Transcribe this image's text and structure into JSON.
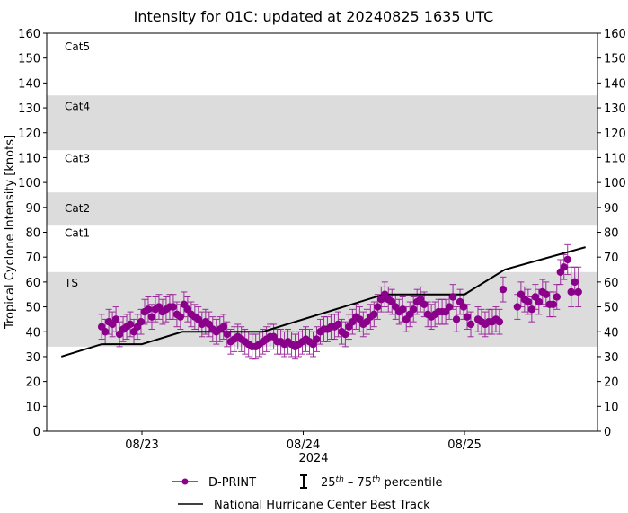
{
  "chart_data": {
    "type": "scatter",
    "title": "Intensity for 01C: updated at 20240825 1635 UTC",
    "ylabel": "Tropical Cyclone Intensity [knots]",
    "xlabel": "2024",
    "ylim": [
      0,
      160
    ],
    "yticks": [
      0,
      10,
      20,
      30,
      40,
      50,
      60,
      70,
      80,
      90,
      100,
      110,
      120,
      130,
      140,
      150,
      160
    ],
    "xticks": [
      "08/23",
      "08/24",
      "08/25"
    ],
    "grid": false,
    "category_bands": [
      {
        "label": "TS",
        "from": 34,
        "to": 64,
        "shaded": true,
        "label_at": 60
      },
      {
        "label": "Cat1",
        "from": 64,
        "to": 83,
        "shaded": false,
        "label_at": 80
      },
      {
        "label": "Cat2",
        "from": 83,
        "to": 96,
        "shaded": true,
        "label_at": 90
      },
      {
        "label": "Cat3",
        "from": 96,
        "to": 113,
        "shaded": false,
        "label_at": 110
      },
      {
        "label": "Cat4",
        "from": 113,
        "to": 135,
        "shaded": true,
        "label_at": 131
      },
      {
        "label": "Cat5",
        "from": 135,
        "to": 160,
        "shaded": false,
        "label_at": 155
      }
    ],
    "colors": {
      "dprint": "#8b008b",
      "best_track": "#000000",
      "band": "#dcdcdc"
    },
    "legend": {
      "placement": "bottom",
      "dprint": "D-PRINT",
      "percentile_pre": "25",
      "percentile_sup1": "th",
      "percentile_mid": " – 75",
      "percentile_sup2": "th",
      "percentile_post": " percentile",
      "best_track": "National Hurricane Center Best Track"
    },
    "best_track": {
      "times": [
        "08/22 12:00",
        "08/22 18:00",
        "08/23 00:00",
        "08/23 06:00",
        "08/23 18:00",
        "08/24 12:00",
        "08/25 00:00",
        "08/25 06:00",
        "08/25 18:00"
      ],
      "values": [
        30,
        35,
        35,
        40,
        40,
        55,
        55,
        65,
        74
      ]
    },
    "dprint": {
      "times": [
        "08/22 18:00",
        "08/22 18:32",
        "08/22 19:04",
        "08/22 19:36",
        "08/22 20:08",
        "08/22 20:40",
        "08/22 21:12",
        "08/22 21:44",
        "08/22 22:16",
        "08/22 22:48",
        "08/22 23:20",
        "08/22 23:52",
        "08/23 00:24",
        "08/23 00:56",
        "08/23 01:28",
        "08/23 02:00",
        "08/23 02:32",
        "08/23 03:04",
        "08/23 03:36",
        "08/23 04:08",
        "08/23 04:40",
        "08/23 05:12",
        "08/23 05:44",
        "08/23 06:16",
        "08/23 06:48",
        "08/23 07:20",
        "08/23 07:52",
        "08/23 08:24",
        "08/23 08:56",
        "08/23 09:28",
        "08/23 10:00",
        "08/23 10:32",
        "08/23 11:04",
        "08/23 11:36",
        "08/23 12:08",
        "08/23 12:40",
        "08/23 13:12",
        "08/23 13:44",
        "08/23 14:16",
        "08/23 14:48",
        "08/23 15:20",
        "08/23 15:52",
        "08/23 16:24",
        "08/23 16:56",
        "08/23 17:28",
        "08/23 18:00",
        "08/23 18:32",
        "08/23 19:04",
        "08/23 19:36",
        "08/23 20:08",
        "08/23 20:40",
        "08/23 21:12",
        "08/23 21:44",
        "08/23 22:16",
        "08/23 22:48",
        "08/23 23:20",
        "08/23 23:52",
        "08/24 00:24",
        "08/24 00:56",
        "08/24 01:28",
        "08/24 02:00",
        "08/24 02:32",
        "08/24 03:04",
        "08/24 03:36",
        "08/24 04:08",
        "08/24 04:40",
        "08/24 05:12",
        "08/24 05:44",
        "08/24 06:16",
        "08/24 06:48",
        "08/24 07:20",
        "08/24 07:52",
        "08/24 08:24",
        "08/24 08:56",
        "08/24 09:28",
        "08/24 10:00",
        "08/24 10:32",
        "08/24 11:04",
        "08/24 11:36",
        "08/24 12:08",
        "08/24 12:40",
        "08/24 13:12",
        "08/24 13:44",
        "08/24 14:16",
        "08/24 14:48",
        "08/24 15:20",
        "08/24 15:52",
        "08/24 16:24",
        "08/24 16:56",
        "08/24 17:28",
        "08/24 18:00",
        "08/24 18:32",
        "08/24 19:04",
        "08/24 19:36",
        "08/24 20:08",
        "08/24 20:40",
        "08/24 21:12",
        "08/24 21:44",
        "08/24 22:16",
        "08/24 22:48",
        "08/24 23:20",
        "08/24 23:52",
        "08/25 00:24",
        "08/25 00:56",
        "08/25 02:00",
        "08/25 02:32",
        "08/25 03:04",
        "08/25 03:36",
        "08/25 04:08",
        "08/25 04:40",
        "08/25 05:12",
        "08/25 05:44",
        "08/25 07:52",
        "08/25 08:24",
        "08/25 08:56",
        "08/25 09:28",
        "08/25 10:00",
        "08/25 10:32",
        "08/25 11:04",
        "08/25 11:36",
        "08/25 12:08",
        "08/25 12:40",
        "08/25 13:12",
        "08/25 13:44",
        "08/25 14:16",
        "08/25 14:48",
        "08/25 15:20",
        "08/25 15:52",
        "08/25 16:24",
        "08/25 16:56"
      ],
      "values": [
        42,
        40,
        44,
        43,
        45,
        39,
        41,
        42,
        43,
        40,
        42,
        44,
        48,
        49,
        46,
        49,
        50,
        48,
        49,
        50,
        50,
        47,
        46,
        51,
        49,
        47,
        46,
        45,
        43,
        44,
        43,
        41,
        40,
        41,
        42,
        39,
        36,
        37,
        38,
        37,
        36,
        35,
        34,
        34,
        35,
        36,
        37,
        38,
        38,
        36,
        36,
        35,
        36,
        35,
        34,
        35,
        36,
        37,
        36,
        35,
        37,
        40,
        41,
        41,
        42,
        42,
        43,
        40,
        39,
        42,
        44,
        46,
        45,
        43,
        44,
        46,
        47,
        50,
        53,
        55,
        53,
        52,
        50,
        48,
        49,
        45,
        47,
        49,
        52,
        53,
        51,
        47,
        46,
        47,
        48,
        48,
        48,
        50,
        54,
        45,
        52,
        50,
        46,
        43,
        45,
        44,
        43,
        44,
        44,
        45,
        44,
        57,
        50,
        55,
        53,
        52,
        49,
        54,
        52,
        56,
        55,
        51,
        51,
        54,
        64,
        66,
        69,
        56,
        60,
        56
      ],
      "p25": [
        37,
        35,
        39,
        38,
        40,
        34,
        36,
        37,
        38,
        35,
        37,
        39,
        43,
        44,
        41,
        44,
        45,
        43,
        44,
        45,
        45,
        42,
        41,
        46,
        44,
        42,
        41,
        40,
        38,
        39,
        38,
        36,
        35,
        36,
        37,
        34,
        31,
        32,
        33,
        32,
        31,
        30,
        29,
        29,
        30,
        31,
        32,
        33,
        33,
        31,
        31,
        30,
        31,
        30,
        29,
        30,
        31,
        32,
        31,
        30,
        32,
        35,
        36,
        36,
        37,
        37,
        38,
        35,
        34,
        37,
        39,
        41,
        40,
        38,
        39,
        41,
        42,
        45,
        48,
        50,
        48,
        47,
        45,
        43,
        44,
        40,
        42,
        44,
        47,
        48,
        46,
        42,
        41,
        42,
        43,
        43,
        43,
        45,
        49,
        40,
        47,
        45,
        41,
        38,
        40,
        39,
        38,
        39,
        39,
        40,
        39,
        52,
        45,
        50,
        48,
        47,
        44,
        49,
        47,
        51,
        50,
        46,
        46,
        49,
        59,
        61,
        63,
        50,
        55,
        50
      ],
      "p75": [
        47,
        45,
        49,
        48,
        50,
        44,
        46,
        47,
        48,
        45,
        47,
        49,
        53,
        54,
        51,
        54,
        55,
        53,
        54,
        55,
        55,
        52,
        51,
        56,
        54,
        52,
        51,
        50,
        48,
        49,
        48,
        46,
        45,
        46,
        47,
        44,
        41,
        42,
        43,
        42,
        41,
        40,
        39,
        39,
        40,
        41,
        42,
        43,
        43,
        41,
        41,
        40,
        41,
        40,
        39,
        40,
        41,
        42,
        41,
        40,
        42,
        45,
        46,
        46,
        47,
        47,
        48,
        45,
        44,
        47,
        49,
        51,
        50,
        48,
        49,
        51,
        52,
        55,
        58,
        60,
        58,
        57,
        55,
        53,
        54,
        50,
        52,
        54,
        57,
        58,
        56,
        52,
        51,
        52,
        53,
        53,
        53,
        55,
        59,
        50,
        57,
        55,
        51,
        48,
        50,
        49,
        48,
        49,
        49,
        50,
        49,
        62,
        55,
        60,
        58,
        57,
        54,
        59,
        57,
        61,
        60,
        56,
        56,
        59,
        69,
        71,
        75,
        66,
        66,
        66
      ]
    }
  }
}
